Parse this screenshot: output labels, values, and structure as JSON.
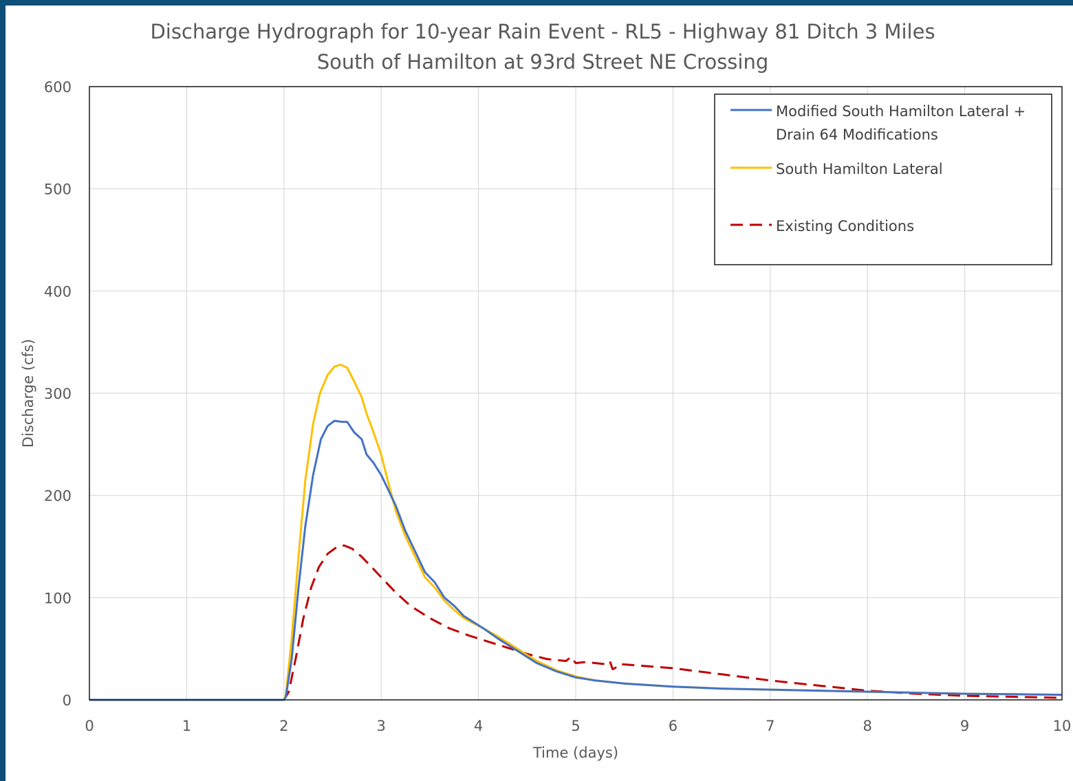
{
  "chart_data": {
    "type": "line",
    "title_line1": "Discharge Hydrograph for 10-year Rain Event - RL5 - Highway 81 Ditch 3 Miles",
    "title_line2": "South of Hamilton at 93rd Street NE Crossing",
    "xlabel": "Time (days)",
    "ylabel": "Discharge (cfs)",
    "xlim": [
      0,
      10
    ],
    "ylim": [
      0,
      600
    ],
    "x_ticks": [
      "0",
      "1",
      "2",
      "3",
      "4",
      "5",
      "6",
      "7",
      "8",
      "9",
      "10"
    ],
    "y_ticks": [
      "0",
      "100",
      "200",
      "300",
      "400",
      "500",
      "600"
    ],
    "grid": true,
    "legend_position": "top-right",
    "series": [
      {
        "name_line1": "Modified South Hamilton Lateral +",
        "name_line2": "Drain 64 Modifications",
        "color": "#4472c4",
        "style": "solid",
        "points": [
          [
            0,
            0
          ],
          [
            1,
            0
          ],
          [
            2,
            0
          ],
          [
            2.02,
            3
          ],
          [
            2.08,
            40
          ],
          [
            2.15,
            110
          ],
          [
            2.22,
            170
          ],
          [
            2.3,
            220
          ],
          [
            2.38,
            255
          ],
          [
            2.45,
            268
          ],
          [
            2.52,
            273
          ],
          [
            2.6,
            272
          ],
          [
            2.65,
            272
          ],
          [
            2.72,
            262
          ],
          [
            2.8,
            255
          ],
          [
            2.85,
            240
          ],
          [
            2.92,
            232
          ],
          [
            3.0,
            220
          ],
          [
            3.05,
            210
          ],
          [
            3.15,
            190
          ],
          [
            3.25,
            165
          ],
          [
            3.35,
            145
          ],
          [
            3.45,
            125
          ],
          [
            3.55,
            115
          ],
          [
            3.65,
            100
          ],
          [
            3.75,
            92
          ],
          [
            3.85,
            82
          ],
          [
            3.95,
            76
          ],
          [
            4.05,
            70
          ],
          [
            4.2,
            60
          ],
          [
            4.4,
            48
          ],
          [
            4.6,
            36
          ],
          [
            4.8,
            28
          ],
          [
            5.0,
            22
          ],
          [
            5.2,
            19
          ],
          [
            5.5,
            16
          ],
          [
            6.0,
            13
          ],
          [
            6.5,
            11
          ],
          [
            7.0,
            10
          ],
          [
            7.5,
            9
          ],
          [
            8.0,
            8
          ],
          [
            8.5,
            7
          ],
          [
            9.0,
            6
          ],
          [
            9.5,
            5.5
          ],
          [
            10,
            5
          ]
        ]
      },
      {
        "name_line1": "South Hamilton Lateral",
        "name_line2": "",
        "color": "#ffc000",
        "style": "solid",
        "points": [
          [
            0,
            0
          ],
          [
            1,
            0
          ],
          [
            2,
            0
          ],
          [
            2.02,
            5
          ],
          [
            2.08,
            60
          ],
          [
            2.15,
            140
          ],
          [
            2.22,
            215
          ],
          [
            2.3,
            270
          ],
          [
            2.37,
            300
          ],
          [
            2.45,
            318
          ],
          [
            2.52,
            326
          ],
          [
            2.58,
            328
          ],
          [
            2.65,
            325
          ],
          [
            2.72,
            312
          ],
          [
            2.8,
            296
          ],
          [
            2.85,
            280
          ],
          [
            2.92,
            262
          ],
          [
            3.0,
            240
          ],
          [
            3.08,
            210
          ],
          [
            3.15,
            185
          ],
          [
            3.25,
            160
          ],
          [
            3.35,
            140
          ],
          [
            3.45,
            120
          ],
          [
            3.55,
            110
          ],
          [
            3.65,
            97
          ],
          [
            3.75,
            88
          ],
          [
            3.85,
            80
          ],
          [
            3.95,
            75
          ],
          [
            4.05,
            70
          ],
          [
            4.2,
            62
          ],
          [
            4.4,
            50
          ],
          [
            4.6,
            38
          ],
          [
            4.8,
            29
          ],
          [
            5.0,
            23
          ],
          [
            5.2,
            19
          ],
          [
            5.5,
            16
          ],
          [
            6.0,
            13
          ],
          [
            6.5,
            11
          ],
          [
            7.0,
            10
          ],
          [
            7.5,
            9
          ],
          [
            8.0,
            8
          ],
          [
            8.5,
            7
          ],
          [
            9.0,
            6
          ],
          [
            9.5,
            5.5
          ],
          [
            10,
            5
          ]
        ]
      },
      {
        "name_line1": "Existing Conditions",
        "name_line2": "",
        "color": "#c00000",
        "style": "dashed",
        "points": [
          [
            0,
            0
          ],
          [
            1,
            0
          ],
          [
            2,
            0
          ],
          [
            2.05,
            8
          ],
          [
            2.12,
            40
          ],
          [
            2.2,
            80
          ],
          [
            2.28,
            110
          ],
          [
            2.36,
            130
          ],
          [
            2.45,
            143
          ],
          [
            2.55,
            150
          ],
          [
            2.62,
            151
          ],
          [
            2.7,
            148
          ],
          [
            2.8,
            140
          ],
          [
            2.9,
            130
          ],
          [
            3.0,
            120
          ],
          [
            3.15,
            105
          ],
          [
            3.3,
            92
          ],
          [
            3.5,
            80
          ],
          [
            3.7,
            70
          ],
          [
            3.9,
            63
          ],
          [
            4.1,
            57
          ],
          [
            4.3,
            51
          ],
          [
            4.5,
            45
          ],
          [
            4.7,
            40
          ],
          [
            4.9,
            38
          ],
          [
            4.95,
            42
          ],
          [
            5.0,
            36
          ],
          [
            5.1,
            37
          ],
          [
            5.2,
            36
          ],
          [
            5.3,
            35
          ],
          [
            5.35,
            38
          ],
          [
            5.38,
            30
          ],
          [
            5.42,
            32
          ],
          [
            5.45,
            35
          ],
          [
            5.6,
            34
          ],
          [
            6.0,
            31
          ],
          [
            6.5,
            25
          ],
          [
            7.0,
            19
          ],
          [
            7.5,
            14
          ],
          [
            8.0,
            9
          ],
          [
            8.5,
            6
          ],
          [
            9.0,
            4
          ],
          [
            9.5,
            3
          ],
          [
            10,
            2
          ]
        ]
      }
    ]
  }
}
